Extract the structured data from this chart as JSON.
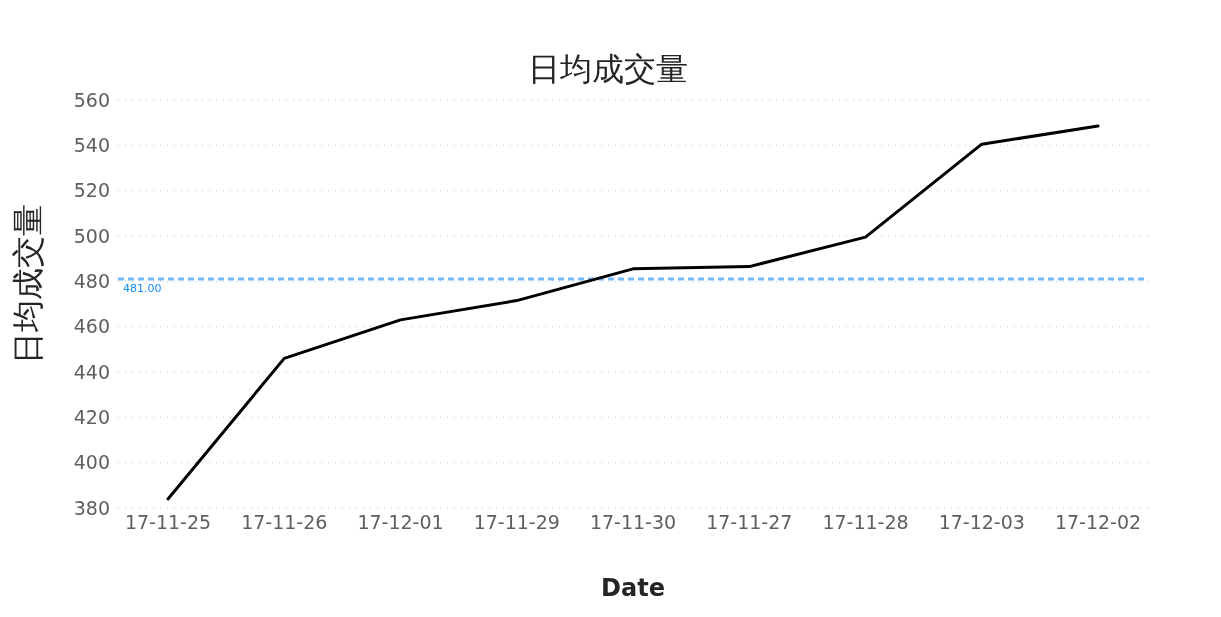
{
  "chart_data": {
    "type": "line",
    "title": "日均成交量",
    "xlabel": "Date",
    "ylabel": "日均成交量",
    "categories": [
      "17-11-25",
      "17-11-26",
      "17-12-01",
      "17-11-29",
      "17-11-30",
      "17-11-27",
      "17-11-28",
      "17-12-03",
      "17-12-02"
    ],
    "series": [
      {
        "color": "#000000",
        "values": [
          384,
          446,
          463,
          471.5,
          485.5,
          486.5,
          499.5,
          540.5,
          548.5
        ]
      }
    ],
    "ylim": [
      380,
      560
    ],
    "yticks": [
      380,
      400,
      420,
      440,
      460,
      480,
      500,
      520,
      540,
      560
    ],
    "ref_lines": [
      {
        "axis": "y",
        "value": 481,
        "label": "481.00",
        "color": "#74b9ff",
        "line_style": "dashed"
      }
    ],
    "grid": "y",
    "legend": false,
    "marker": "none",
    "line_style": "solid"
  }
}
